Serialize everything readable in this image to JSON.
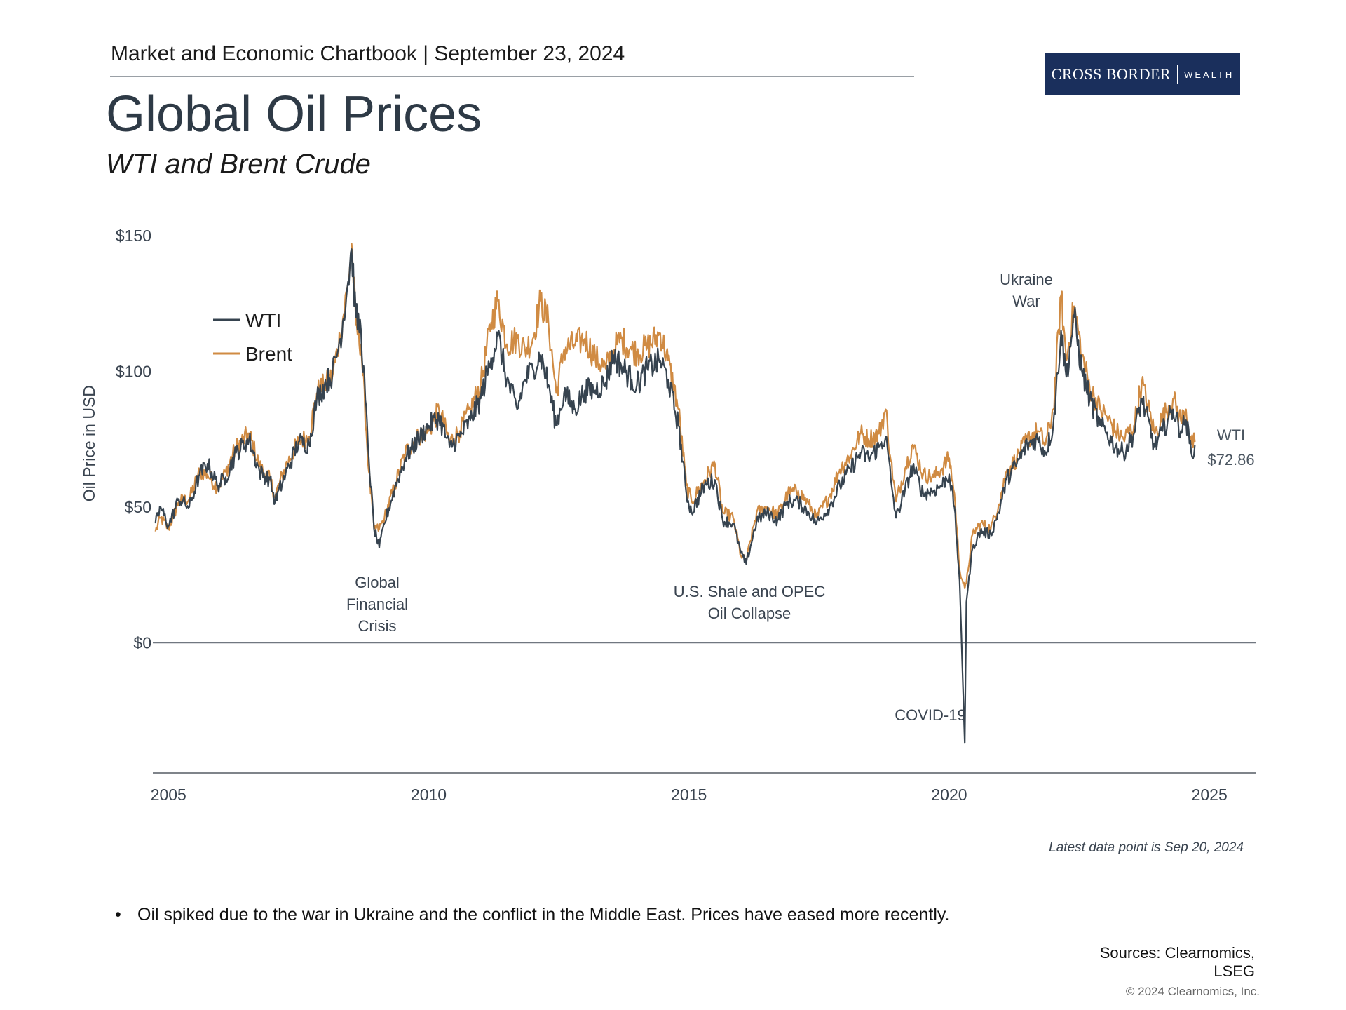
{
  "header": {
    "chartbook": "Market and Economic Chartbook | September 23, 2024",
    "title": "Global Oil Prices",
    "subtitle": "WTI and Brent Crude",
    "logo_main": "CROSS BORDER",
    "logo_sub": "WEALTH"
  },
  "chart_data": {
    "type": "line",
    "title": "Global Oil Prices",
    "subtitle": "WTI and Brent Crude",
    "ylabel": "Oil Price in USD",
    "xlabel": "",
    "xlim": [
      2004.7,
      2025.9
    ],
    "ylim": [
      -48,
      150
    ],
    "y_ticks": [
      {
        "value": 150,
        "label": "$150"
      },
      {
        "value": 100,
        "label": "$100"
      },
      {
        "value": 50,
        "label": "$50"
      },
      {
        "value": 0,
        "label": "$0"
      }
    ],
    "x_ticks": [
      {
        "value": 2005,
        "label": "2005"
      },
      {
        "value": 2010,
        "label": "2010"
      },
      {
        "value": 2015,
        "label": "2015"
      },
      {
        "value": 2020,
        "label": "2020"
      },
      {
        "value": 2025,
        "label": "2025"
      }
    ],
    "grid": false,
    "legend_position": "top-left",
    "series": [
      {
        "name": "WTI",
        "color": "#36434f",
        "points": [
          [
            2004.75,
            44
          ],
          [
            2004.85,
            50
          ],
          [
            2005.0,
            43
          ],
          [
            2005.2,
            53
          ],
          [
            2005.4,
            50
          ],
          [
            2005.6,
            62
          ],
          [
            2005.75,
            66
          ],
          [
            2005.95,
            58
          ],
          [
            2006.1,
            61
          ],
          [
            2006.3,
            70
          ],
          [
            2006.55,
            75
          ],
          [
            2006.75,
            63
          ],
          [
            2006.95,
            60
          ],
          [
            2007.05,
            52
          ],
          [
            2007.25,
            62
          ],
          [
            2007.5,
            74
          ],
          [
            2007.7,
            73
          ],
          [
            2007.85,
            90
          ],
          [
            2008.0,
            95
          ],
          [
            2008.15,
            99
          ],
          [
            2008.3,
            112
          ],
          [
            2008.45,
            133
          ],
          [
            2008.52,
            145
          ],
          [
            2008.6,
            120
          ],
          [
            2008.7,
            115
          ],
          [
            2008.85,
            68
          ],
          [
            2008.95,
            42
          ],
          [
            2009.05,
            35
          ],
          [
            2009.15,
            44
          ],
          [
            2009.35,
            57
          ],
          [
            2009.55,
            68
          ],
          [
            2009.8,
            75
          ],
          [
            2010.0,
            80
          ],
          [
            2010.2,
            83
          ],
          [
            2010.4,
            72
          ],
          [
            2010.6,
            76
          ],
          [
            2010.8,
            82
          ],
          [
            2011.0,
            90
          ],
          [
            2011.2,
            105
          ],
          [
            2011.33,
            113
          ],
          [
            2011.5,
            97
          ],
          [
            2011.7,
            86
          ],
          [
            2011.85,
            97
          ],
          [
            2012.0,
            101
          ],
          [
            2012.15,
            106
          ],
          [
            2012.3,
            95
          ],
          [
            2012.45,
            80
          ],
          [
            2012.6,
            92
          ],
          [
            2012.8,
            86
          ],
          [
            2013.0,
            93
          ],
          [
            2013.2,
            93
          ],
          [
            2013.4,
            96
          ],
          [
            2013.55,
            106
          ],
          [
            2013.7,
            102
          ],
          [
            2013.9,
            97
          ],
          [
            2014.0,
            95
          ],
          [
            2014.2,
            101
          ],
          [
            2014.45,
            104
          ],
          [
            2014.6,
            97
          ],
          [
            2014.8,
            80
          ],
          [
            2014.95,
            55
          ],
          [
            2015.05,
            48
          ],
          [
            2015.3,
            58
          ],
          [
            2015.5,
            60
          ],
          [
            2015.65,
            45
          ],
          [
            2015.85,
            44
          ],
          [
            2016.0,
            33
          ],
          [
            2016.1,
            29
          ],
          [
            2016.3,
            45
          ],
          [
            2016.5,
            48
          ],
          [
            2016.7,
            45
          ],
          [
            2016.9,
            52
          ],
          [
            2017.1,
            52
          ],
          [
            2017.3,
            48
          ],
          [
            2017.45,
            44
          ],
          [
            2017.7,
            50
          ],
          [
            2017.9,
            58
          ],
          [
            2018.1,
            64
          ],
          [
            2018.3,
            70
          ],
          [
            2018.45,
            68
          ],
          [
            2018.65,
            72
          ],
          [
            2018.78,
            76
          ],
          [
            2018.88,
            60
          ],
          [
            2018.98,
            46
          ],
          [
            2019.15,
            56
          ],
          [
            2019.3,
            65
          ],
          [
            2019.5,
            55
          ],
          [
            2019.7,
            56
          ],
          [
            2019.85,
            58
          ],
          [
            2020.0,
            62
          ],
          [
            2020.1,
            50
          ],
          [
            2020.2,
            23
          ],
          [
            2020.3,
            -37
          ],
          [
            2020.33,
            15
          ],
          [
            2020.45,
            35
          ],
          [
            2020.6,
            41
          ],
          [
            2020.8,
            40
          ],
          [
            2020.95,
            48
          ],
          [
            2021.1,
            60
          ],
          [
            2021.3,
            66
          ],
          [
            2021.5,
            73
          ],
          [
            2021.7,
            75
          ],
          [
            2021.85,
            70
          ],
          [
            2022.0,
            80
          ],
          [
            2022.15,
            115
          ],
          [
            2022.25,
            98
          ],
          [
            2022.4,
            120
          ],
          [
            2022.55,
            100
          ],
          [
            2022.7,
            90
          ],
          [
            2022.9,
            80
          ],
          [
            2023.0,
            78
          ],
          [
            2023.2,
            72
          ],
          [
            2023.35,
            70
          ],
          [
            2023.55,
            77
          ],
          [
            2023.7,
            90
          ],
          [
            2023.95,
            72
          ],
          [
            2024.1,
            78
          ],
          [
            2024.3,
            86
          ],
          [
            2024.45,
            78
          ],
          [
            2024.55,
            82
          ],
          [
            2024.65,
            70
          ],
          [
            2024.72,
            72.86
          ]
        ]
      },
      {
        "name": "Brent",
        "color": "#d08b43",
        "points": [
          [
            2004.75,
            41
          ],
          [
            2004.85,
            46
          ],
          [
            2005.0,
            42
          ],
          [
            2005.2,
            52
          ],
          [
            2005.4,
            53
          ],
          [
            2005.6,
            63
          ],
          [
            2005.75,
            62
          ],
          [
            2005.95,
            57
          ],
          [
            2006.1,
            63
          ],
          [
            2006.3,
            72
          ],
          [
            2006.55,
            77
          ],
          [
            2006.75,
            65
          ],
          [
            2006.95,
            60
          ],
          [
            2007.05,
            54
          ],
          [
            2007.25,
            65
          ],
          [
            2007.5,
            74
          ],
          [
            2007.7,
            76
          ],
          [
            2007.85,
            92
          ],
          [
            2008.0,
            95
          ],
          [
            2008.15,
            98
          ],
          [
            2008.3,
            113
          ],
          [
            2008.45,
            132
          ],
          [
            2008.52,
            147
          ],
          [
            2008.6,
            117
          ],
          [
            2008.7,
            110
          ],
          [
            2008.85,
            63
          ],
          [
            2008.95,
            42
          ],
          [
            2009.05,
            42
          ],
          [
            2009.15,
            46
          ],
          [
            2009.35,
            58
          ],
          [
            2009.55,
            70
          ],
          [
            2009.8,
            76
          ],
          [
            2010.0,
            78
          ],
          [
            2010.2,
            86
          ],
          [
            2010.4,
            74
          ],
          [
            2010.6,
            78
          ],
          [
            2010.8,
            86
          ],
          [
            2011.0,
            95
          ],
          [
            2011.2,
            118
          ],
          [
            2011.33,
            126
          ],
          [
            2011.5,
            110
          ],
          [
            2011.7,
            112
          ],
          [
            2011.85,
            108
          ],
          [
            2012.0,
            112
          ],
          [
            2012.15,
            126
          ],
          [
            2012.3,
            118
          ],
          [
            2012.45,
            92
          ],
          [
            2012.6,
            108
          ],
          [
            2012.8,
            110
          ],
          [
            2013.0,
            112
          ],
          [
            2013.2,
            105
          ],
          [
            2013.4,
            101
          ],
          [
            2013.55,
            108
          ],
          [
            2013.7,
            112
          ],
          [
            2013.9,
            108
          ],
          [
            2014.0,
            107
          ],
          [
            2014.2,
            109
          ],
          [
            2014.45,
            114
          ],
          [
            2014.6,
            104
          ],
          [
            2014.8,
            86
          ],
          [
            2014.95,
            58
          ],
          [
            2015.05,
            52
          ],
          [
            2015.3,
            60
          ],
          [
            2015.5,
            66
          ],
          [
            2015.65,
            48
          ],
          [
            2015.85,
            46
          ],
          [
            2016.0,
            32
          ],
          [
            2016.1,
            30
          ],
          [
            2016.3,
            48
          ],
          [
            2016.5,
            50
          ],
          [
            2016.7,
            47
          ],
          [
            2016.9,
            55
          ],
          [
            2017.1,
            56
          ],
          [
            2017.3,
            51
          ],
          [
            2017.45,
            46
          ],
          [
            2017.7,
            54
          ],
          [
            2017.9,
            64
          ],
          [
            2018.1,
            69
          ],
          [
            2018.3,
            77
          ],
          [
            2018.45,
            75
          ],
          [
            2018.65,
            77
          ],
          [
            2018.78,
            86
          ],
          [
            2018.88,
            67
          ],
          [
            2018.98,
            52
          ],
          [
            2019.15,
            64
          ],
          [
            2019.3,
            73
          ],
          [
            2019.5,
            62
          ],
          [
            2019.7,
            61
          ],
          [
            2019.85,
            64
          ],
          [
            2020.0,
            68
          ],
          [
            2020.1,
            55
          ],
          [
            2020.2,
            27
          ],
          [
            2020.3,
            20
          ],
          [
            2020.33,
            22
          ],
          [
            2020.45,
            40
          ],
          [
            2020.6,
            44
          ],
          [
            2020.8,
            42
          ],
          [
            2020.95,
            51
          ],
          [
            2021.1,
            63
          ],
          [
            2021.3,
            68
          ],
          [
            2021.5,
            75
          ],
          [
            2021.7,
            78
          ],
          [
            2021.85,
            73
          ],
          [
            2022.0,
            86
          ],
          [
            2022.15,
            128
          ],
          [
            2022.25,
            104
          ],
          [
            2022.4,
            124
          ],
          [
            2022.55,
            106
          ],
          [
            2022.7,
            94
          ],
          [
            2022.9,
            86
          ],
          [
            2023.0,
            84
          ],
          [
            2023.2,
            78
          ],
          [
            2023.35,
            75
          ],
          [
            2023.55,
            80
          ],
          [
            2023.7,
            96
          ],
          [
            2023.95,
            77
          ],
          [
            2024.1,
            83
          ],
          [
            2024.3,
            90
          ],
          [
            2024.45,
            82
          ],
          [
            2024.55,
            86
          ],
          [
            2024.65,
            73
          ],
          [
            2024.72,
            74
          ]
        ]
      }
    ],
    "legend": [
      "WTI",
      "Brent"
    ],
    "annotations": [
      {
        "id": "gfc",
        "lines": [
          "Global",
          "Financial",
          "Crisis"
        ]
      },
      {
        "id": "shale",
        "lines": [
          "U.S. Shale and OPEC",
          "Oil Collapse"
        ]
      },
      {
        "id": "covid",
        "lines": [
          "COVID-19"
        ]
      },
      {
        "id": "ukraine",
        "lines": [
          "Ukraine",
          "War"
        ]
      }
    ],
    "end_label": {
      "series": "WTI",
      "lines": [
        "WTI",
        "$72.86"
      ]
    }
  },
  "footer": {
    "latest": "Latest data point is Sep 20, 2024",
    "bullet": "Oil spiked due to the war in Ukraine and the conflict in the Middle East. Prices have eased more recently.",
    "bullet_marker": "•",
    "sources_line1": "Sources: Clearnomics,",
    "sources_line2": "LSEG",
    "copyright": "© 2024 Clearnomics, Inc."
  }
}
